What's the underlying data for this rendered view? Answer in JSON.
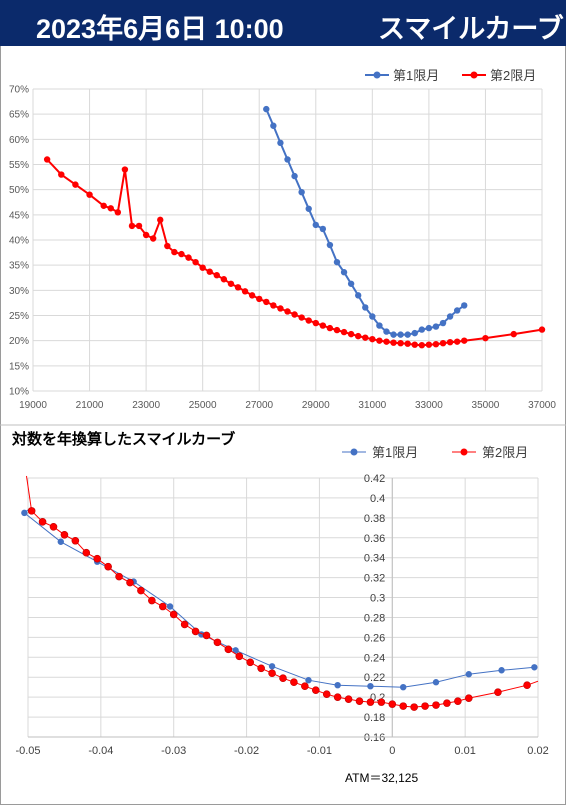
{
  "header": {
    "date_time": "2023年6月6日 10:00",
    "label": "スマイルカーブ",
    "bg_color": "#0b2a6b"
  },
  "colors": {
    "series1": "#4472c4",
    "series2": "#ff0000"
  },
  "chart_data": [
    {
      "type": "line",
      "title": "",
      "xlim": [
        19000,
        37000
      ],
      "ylim": [
        0.1,
        0.7
      ],
      "x_ticks": [
        19000,
        21000,
        23000,
        25000,
        27000,
        29000,
        31000,
        33000,
        35000,
        37000
      ],
      "y_ticks": [
        "10%",
        "15%",
        "20%",
        "25%",
        "30%",
        "35%",
        "40%",
        "45%",
        "50%",
        "55%",
        "60%",
        "65%",
        "70%"
      ],
      "legend": "top-right",
      "grid": true,
      "series": [
        {
          "name": "第1限月",
          "points": [
            [
              27250,
              0.66
            ],
            [
              27500,
              0.627
            ],
            [
              27750,
              0.593
            ],
            [
              28000,
              0.56
            ],
            [
              28250,
              0.527
            ],
            [
              28500,
              0.495
            ],
            [
              28750,
              0.462
            ],
            [
              29000,
              0.43
            ],
            [
              29250,
              0.422
            ],
            [
              29500,
              0.39
            ],
            [
              29750,
              0.356
            ],
            [
              30000,
              0.336
            ],
            [
              30250,
              0.313
            ],
            [
              30500,
              0.29
            ],
            [
              30750,
              0.266
            ],
            [
              31000,
              0.248
            ],
            [
              31250,
              0.23
            ],
            [
              31500,
              0.218
            ],
            [
              31750,
              0.212
            ],
            [
              32000,
              0.212
            ],
            [
              32250,
              0.212
            ],
            [
              32500,
              0.215
            ],
            [
              32750,
              0.222
            ],
            [
              33000,
              0.225
            ],
            [
              33250,
              0.228
            ],
            [
              33500,
              0.235
            ],
            [
              33750,
              0.248
            ],
            [
              34000,
              0.26
            ],
            [
              34250,
              0.27
            ]
          ]
        },
        {
          "name": "第2限月",
          "points": [
            [
              19500,
              0.56
            ],
            [
              20000,
              0.53
            ],
            [
              20500,
              0.51
            ],
            [
              21000,
              0.49
            ],
            [
              21500,
              0.468
            ],
            [
              21750,
              0.463
            ],
            [
              22000,
              0.455
            ],
            [
              22250,
              0.54
            ],
            [
              22500,
              0.428
            ],
            [
              22750,
              0.428
            ],
            [
              23000,
              0.41
            ],
            [
              23250,
              0.403
            ],
            [
              23500,
              0.44
            ],
            [
              23750,
              0.388
            ],
            [
              24000,
              0.376
            ],
            [
              24250,
              0.372
            ],
            [
              24500,
              0.365
            ],
            [
              24750,
              0.356
            ],
            [
              25000,
              0.345
            ],
            [
              25250,
              0.337
            ],
            [
              25500,
              0.33
            ],
            [
              25750,
              0.322
            ],
            [
              26000,
              0.313
            ],
            [
              26250,
              0.306
            ],
            [
              26500,
              0.298
            ],
            [
              26750,
              0.29
            ],
            [
              27000,
              0.283
            ],
            [
              27250,
              0.277
            ],
            [
              27500,
              0.27
            ],
            [
              27750,
              0.264
            ],
            [
              28000,
              0.258
            ],
            [
              28250,
              0.252
            ],
            [
              28500,
              0.246
            ],
            [
              28750,
              0.24
            ],
            [
              29000,
              0.235
            ],
            [
              29250,
              0.23
            ],
            [
              29500,
              0.225
            ],
            [
              29750,
              0.221
            ],
            [
              30000,
              0.217
            ],
            [
              30250,
              0.213
            ],
            [
              30500,
              0.209
            ],
            [
              30750,
              0.206
            ],
            [
              31000,
              0.203
            ],
            [
              31250,
              0.2
            ],
            [
              31500,
              0.198
            ],
            [
              31750,
              0.196
            ],
            [
              32000,
              0.195
            ],
            [
              32250,
              0.194
            ],
            [
              32500,
              0.192
            ],
            [
              32750,
              0.191
            ],
            [
              33000,
              0.192
            ],
            [
              33250,
              0.193
            ],
            [
              33500,
              0.195
            ],
            [
              33750,
              0.197
            ],
            [
              34000,
              0.198
            ],
            [
              34250,
              0.2
            ],
            [
              35000,
              0.205
            ],
            [
              36000,
              0.213
            ],
            [
              37000,
              0.222
            ]
          ]
        }
      ]
    },
    {
      "type": "line",
      "title": "対数を年換算したスマイルカーブ",
      "xlim": [
        -0.05,
        0.02
      ],
      "ylim": [
        0.16,
        0.42
      ],
      "x_ticks": [
        "-0.05",
        "-0.04",
        "-0.03",
        "-0.02",
        "-0.01",
        "0",
        "0.01",
        "0.02"
      ],
      "y_ticks": [
        "0.16",
        "0.18",
        "0.2",
        "0.22",
        "0.24",
        "0.26",
        "0.28",
        "0.3",
        "0.32",
        "0.34",
        "0.36",
        "0.38",
        "0.4",
        "0.42"
      ],
      "legend": "top-right",
      "grid": true,
      "annotation": "ATM＝32,125",
      "series": [
        {
          "name": "第1限月",
          "points": [
            [
              -0.0505,
              0.385
            ],
            [
              -0.0455,
              0.356
            ],
            [
              -0.0405,
              0.336
            ],
            [
              -0.0355,
              0.316
            ],
            [
              -0.0305,
              0.291
            ],
            [
              -0.0262,
              0.263
            ],
            [
              -0.0215,
              0.247
            ],
            [
              -0.0165,
              0.231
            ],
            [
              -0.0115,
              0.217
            ],
            [
              -0.0075,
              0.212
            ],
            [
              -0.003,
              0.211
            ],
            [
              0.0015,
              0.21
            ],
            [
              0.006,
              0.215
            ],
            [
              0.0105,
              0.223
            ],
            [
              0.015,
              0.227
            ],
            [
              0.0195,
              0.23
            ]
          ]
        },
        {
          "name": "第2限月",
          "points": [
            [
              -0.0495,
              0.387
            ],
            [
              -0.048,
              0.376
            ],
            [
              -0.0465,
              0.371
            ],
            [
              -0.045,
              0.363
            ],
            [
              -0.0435,
              0.357
            ],
            [
              -0.042,
              0.345
            ],
            [
              -0.0405,
              0.339
            ],
            [
              -0.039,
              0.331
            ],
            [
              -0.0375,
              0.321
            ],
            [
              -0.036,
              0.315
            ],
            [
              -0.0345,
              0.307
            ],
            [
              -0.033,
              0.297
            ],
            [
              -0.0315,
              0.291
            ],
            [
              -0.03,
              0.283
            ],
            [
              -0.0285,
              0.273
            ],
            [
              -0.027,
              0.266
            ],
            [
              -0.0255,
              0.262
            ],
            [
              -0.024,
              0.255
            ],
            [
              -0.0225,
              0.248
            ],
            [
              -0.021,
              0.241
            ],
            [
              -0.0195,
              0.235
            ],
            [
              -0.018,
              0.229
            ],
            [
              -0.0165,
              0.224
            ],
            [
              -0.015,
              0.219
            ],
            [
              -0.0135,
              0.215
            ],
            [
              -0.012,
              0.211
            ],
            [
              -0.0105,
              0.207
            ],
            [
              -0.009,
              0.203
            ],
            [
              -0.0075,
              0.2
            ],
            [
              -0.006,
              0.198
            ],
            [
              -0.0045,
              0.196
            ],
            [
              -0.003,
              0.195
            ],
            [
              -0.0015,
              0.195
            ],
            [
              0.0,
              0.193
            ],
            [
              0.0015,
              0.191
            ],
            [
              0.003,
              0.19
            ],
            [
              0.0045,
              0.191
            ],
            [
              0.006,
              0.192
            ],
            [
              0.0075,
              0.194
            ],
            [
              0.009,
              0.196
            ],
            [
              0.0105,
              0.199
            ],
            [
              0.0145,
              0.205
            ],
            [
              0.0185,
              0.212
            ]
          ]
        }
      ]
    }
  ]
}
